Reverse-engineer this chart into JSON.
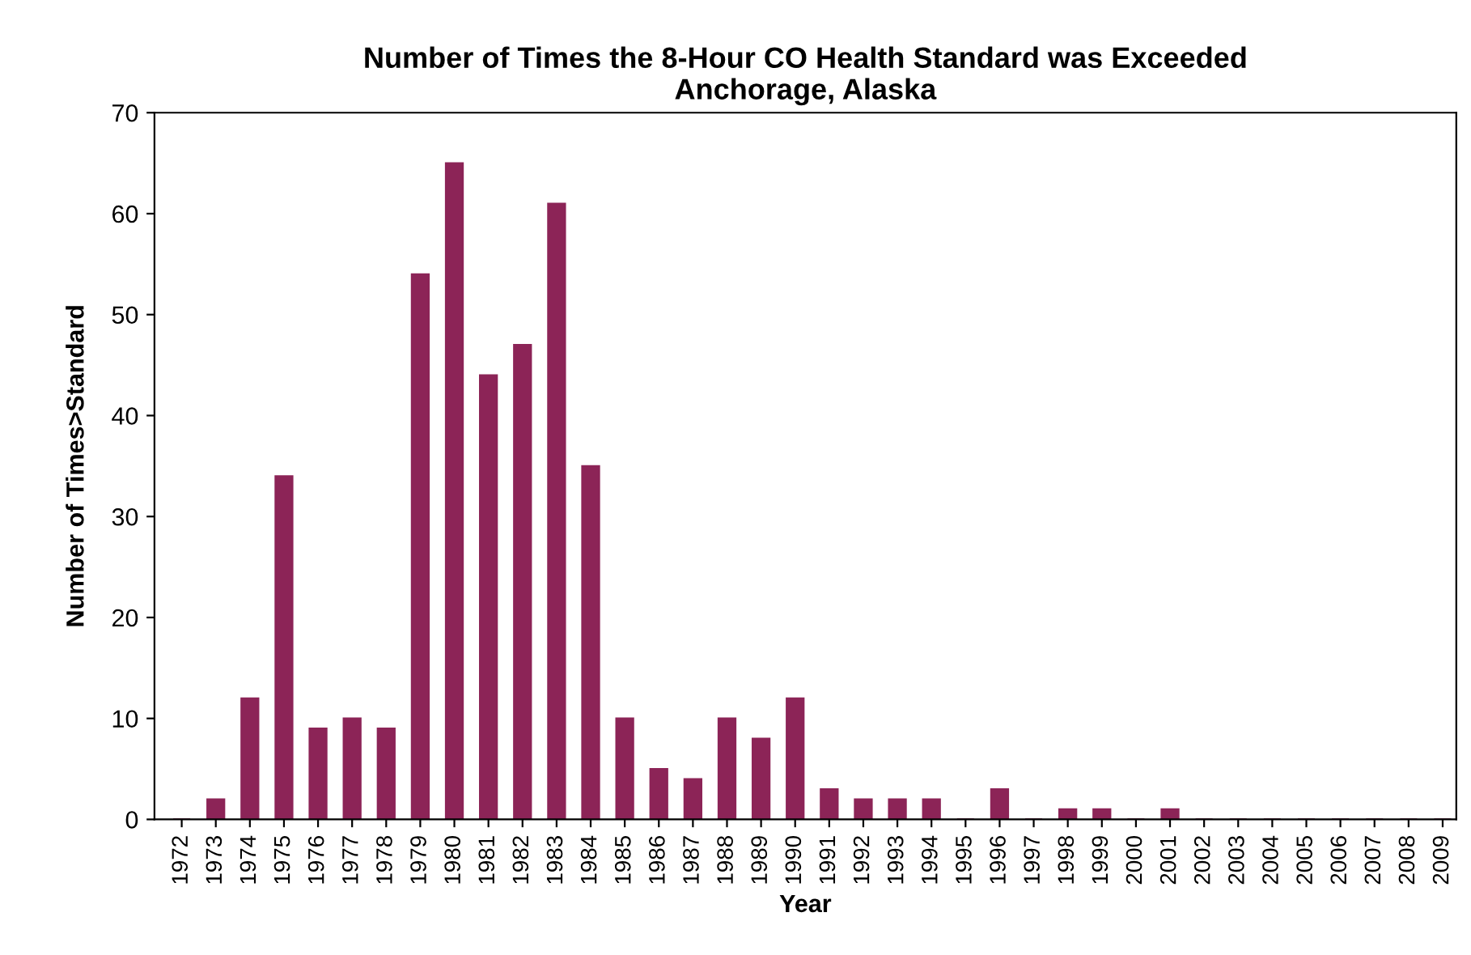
{
  "chart_data": {
    "type": "bar",
    "title": "Number of Times the 8-Hour CO Health Standard was Exceeded\nAnchorage, Alaska",
    "xlabel": "Year",
    "ylabel": "Number of Times>Standard",
    "categories": [
      "1972",
      "1973",
      "1974",
      "1975",
      "1976",
      "1977",
      "1978",
      "1979",
      "1980",
      "1981",
      "1982",
      "1983",
      "1984",
      "1985",
      "1986",
      "1987",
      "1988",
      "1989",
      "1990",
      "1991",
      "1992",
      "1993",
      "1994",
      "1995",
      "1996",
      "1997",
      "1998",
      "1999",
      "2000",
      "2001",
      "2002",
      "2003",
      "2004",
      "2005",
      "2006",
      "2007",
      "2008",
      "2009"
    ],
    "values": [
      0,
      2,
      12,
      34,
      9,
      10,
      9,
      54,
      65,
      44,
      47,
      61,
      35,
      10,
      5,
      4,
      10,
      8,
      12,
      3,
      2,
      2,
      2,
      0,
      3,
      0,
      1,
      1,
      0,
      1,
      0,
      0,
      0,
      0,
      0,
      0,
      0,
      0
    ],
    "color": "#8c2457",
    "ylim": [
      0,
      70
    ],
    "yticks": [
      0,
      10,
      20,
      30,
      40,
      50,
      60,
      70
    ],
    "grid": false
  }
}
